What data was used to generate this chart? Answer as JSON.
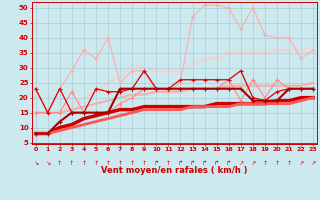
{
  "xlabel": "Vent moyen/en rafales ( km/h )",
  "xlim": [
    -0.3,
    23.3
  ],
  "ylim": [
    4.5,
    52
  ],
  "yticks": [
    5,
    10,
    15,
    20,
    25,
    30,
    35,
    40,
    45,
    50
  ],
  "xticks": [
    0,
    1,
    2,
    3,
    4,
    5,
    6,
    7,
    8,
    9,
    10,
    11,
    12,
    13,
    14,
    15,
    16,
    17,
    18,
    19,
    20,
    21,
    22,
    23
  ],
  "background_color": "#cce9ef",
  "grid_color": "#aacdd4",
  "series": [
    {
      "x": [
        0,
        1,
        2,
        3,
        4,
        5,
        6,
        7,
        8,
        9,
        10,
        11,
        12,
        13,
        14,
        15,
        16,
        17,
        18,
        19,
        20,
        21,
        22,
        23
      ],
      "y": [
        23,
        15,
        23,
        15,
        15,
        23,
        22,
        22,
        23,
        29,
        23,
        23,
        26,
        26,
        26,
        26,
        26,
        29,
        20,
        19,
        22,
        23,
        23,
        23
      ],
      "color": "#dd0000",
      "lw": 0.9,
      "marker": "+",
      "ms": 3.0,
      "alpha": 1.0,
      "zorder": 5
    },
    {
      "x": [
        0,
        1,
        2,
        3,
        4,
        5,
        6,
        7,
        8,
        9,
        10,
        11,
        12,
        13,
        14,
        15,
        16,
        17,
        18,
        19,
        20,
        21,
        22,
        23
      ],
      "y": [
        8,
        8,
        12,
        15,
        15,
        15,
        15,
        23,
        23,
        23,
        23,
        23,
        23,
        23,
        23,
        23,
        23,
        23,
        19,
        19,
        19,
        23,
        23,
        23
      ],
      "color": "#aa0000",
      "lw": 1.5,
      "marker": "+",
      "ms": 3.0,
      "alpha": 1.0,
      "zorder": 5
    },
    {
      "x": [
        0,
        1,
        2,
        3,
        4,
        5,
        6,
        7,
        8,
        9,
        10,
        11,
        12,
        13,
        14,
        15,
        16,
        17,
        18,
        19,
        20,
        21,
        22,
        23
      ],
      "y": [
        8,
        8,
        10,
        11,
        13,
        14,
        15,
        16,
        16,
        17,
        17,
        17,
        17,
        17,
        17,
        18,
        18,
        18,
        18,
        18,
        19,
        19,
        20,
        20
      ],
      "color": "#cc0000",
      "lw": 2.5,
      "marker": null,
      "ms": 0,
      "alpha": 1.0,
      "zorder": 3
    },
    {
      "x": [
        0,
        1,
        2,
        3,
        4,
        5,
        6,
        7,
        8,
        9,
        10,
        11,
        12,
        13,
        14,
        15,
        16,
        17,
        18,
        19,
        20,
        21,
        22,
        23
      ],
      "y": [
        8,
        8,
        9,
        10,
        11,
        12,
        13,
        14,
        15,
        16,
        16,
        16,
        16,
        17,
        17,
        17,
        17,
        18,
        18,
        18,
        18,
        18,
        19,
        20
      ],
      "color": "#ff5555",
      "lw": 2.0,
      "marker": null,
      "ms": 0,
      "alpha": 1.0,
      "zorder": 3
    },
    {
      "x": [
        0,
        1,
        2,
        3,
        4,
        5,
        6,
        7,
        8,
        9,
        10,
        11,
        12,
        13,
        14,
        15,
        16,
        17,
        18,
        19,
        20,
        21,
        22,
        23
      ],
      "y": [
        23,
        15,
        23,
        29,
        36,
        33,
        40,
        25,
        29,
        29,
        22,
        22,
        25,
        47,
        51,
        51,
        50,
        43,
        50,
        41,
        40,
        40,
        33,
        36
      ],
      "color": "#ffaaaa",
      "lw": 0.8,
      "marker": "+",
      "ms": 3.0,
      "alpha": 1.0,
      "zorder": 2
    },
    {
      "x": [
        0,
        1,
        2,
        3,
        4,
        5,
        6,
        7,
        8,
        9,
        10,
        11,
        12,
        13,
        14,
        15,
        16,
        17,
        18,
        19,
        20,
        21,
        22,
        23
      ],
      "y": [
        15,
        15,
        15,
        22,
        15,
        15,
        15,
        18,
        20,
        23,
        23,
        23,
        23,
        23,
        23,
        23,
        26,
        19,
        26,
        20,
        26,
        23,
        23,
        23
      ],
      "color": "#ff8888",
      "lw": 0.8,
      "marker": "+",
      "ms": 3.0,
      "alpha": 1.0,
      "zorder": 2
    },
    {
      "x": [
        0,
        1,
        2,
        3,
        4,
        5,
        6,
        7,
        8,
        9,
        10,
        11,
        12,
        13,
        14,
        15,
        16,
        17,
        18,
        19,
        20,
        21,
        22,
        23
      ],
      "y": [
        15,
        15,
        15,
        18,
        20,
        22,
        25,
        27,
        31,
        30,
        29,
        29,
        29,
        31,
        33,
        33,
        35,
        35,
        35,
        35,
        36,
        36,
        36,
        37
      ],
      "color": "#ffcccc",
      "lw": 1.2,
      "marker": null,
      "ms": 0,
      "alpha": 1.0,
      "zorder": 1
    },
    {
      "x": [
        0,
        1,
        2,
        3,
        4,
        5,
        6,
        7,
        8,
        9,
        10,
        11,
        12,
        13,
        14,
        15,
        16,
        17,
        18,
        19,
        20,
        21,
        22,
        23
      ],
      "y": [
        15,
        15,
        15,
        16,
        17,
        18,
        19,
        20,
        21,
        21,
        22,
        22,
        22,
        23,
        23,
        23,
        24,
        24,
        24,
        24,
        24,
        24,
        24,
        25
      ],
      "color": "#ffaaaa",
      "lw": 1.5,
      "marker": null,
      "ms": 0,
      "alpha": 1.0,
      "zorder": 1
    }
  ],
  "wind_arrows": [
    "↘",
    "↘",
    "↑",
    "↑",
    "↑",
    "↑",
    "↑",
    "↑",
    "↑",
    "↑",
    "↱",
    "↑",
    "↱",
    "↱",
    "↱",
    "↱",
    "↱",
    "↗",
    "↗",
    "↑",
    "↑",
    "↑",
    "↗",
    "↗"
  ]
}
